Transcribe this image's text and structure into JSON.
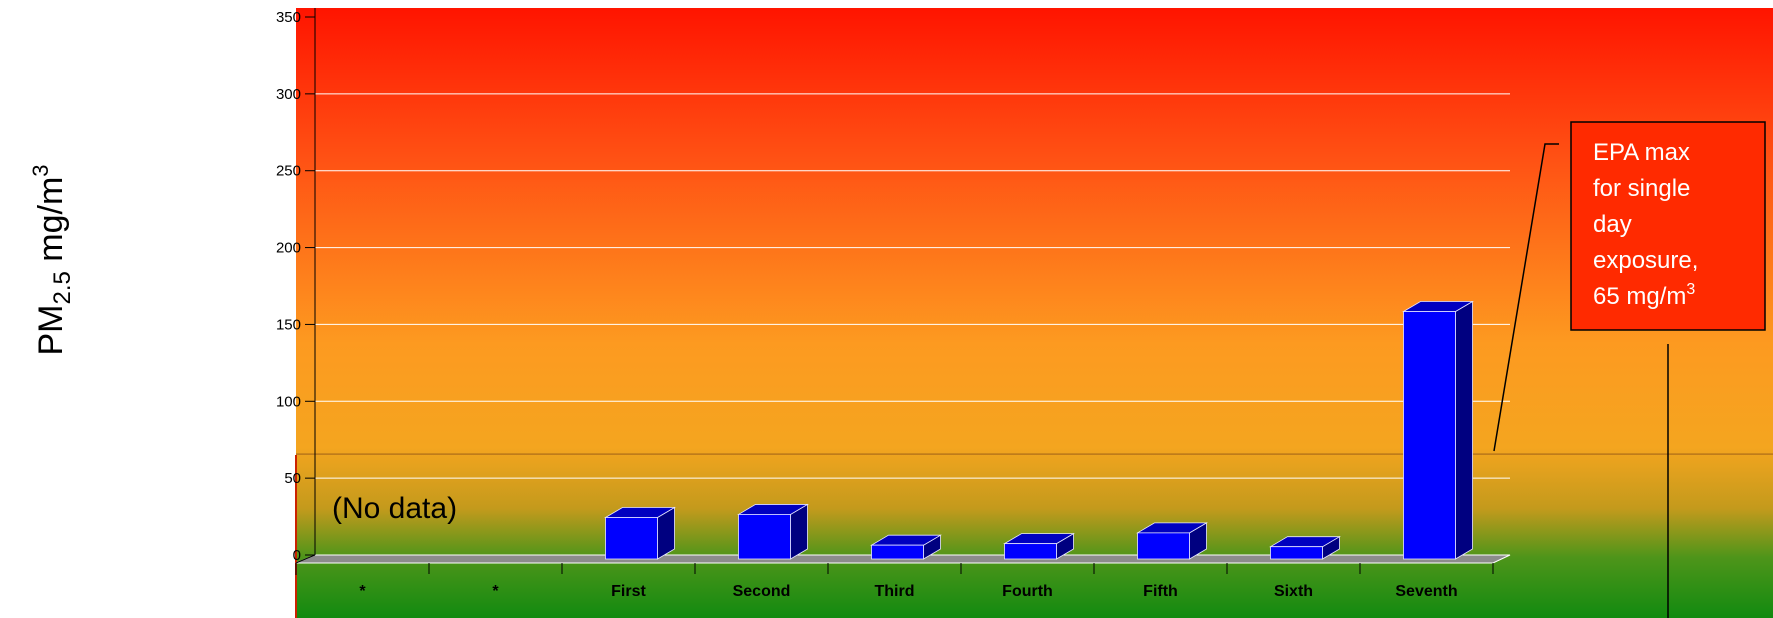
{
  "chart_data": {
    "type": "bar",
    "categories": [
      "*",
      "*",
      "First",
      "Second",
      "Third",
      "Fourth",
      "Fifth",
      "Sixth",
      "Seventh"
    ],
    "values": [
      null,
      null,
      27,
      29,
      9,
      10,
      17,
      8,
      161
    ],
    "xlabel": "",
    "ylabel": "PM2.5 mg/m3",
    "ylim": [
      0,
      350
    ],
    "yticks": [
      0,
      50,
      100,
      150,
      200,
      250,
      300,
      350
    ],
    "grid": true,
    "reference_line": 65,
    "bar_color": "#0000ff",
    "background_gradient": [
      "#ff1500",
      "#ff5a14",
      "#fc9a20",
      "#f2a31e",
      "#2d9a1a",
      "#158a10"
    ]
  },
  "ylabel_parts": {
    "main": "PM",
    "sub": "2.5",
    "unit": " mg/m",
    "sup": "3"
  },
  "annotations": {
    "no_data": "(No data)",
    "callout": {
      "lines": [
        "EPA max",
        "for single",
        "day",
        "exposure,"
      ],
      "last_line": "65 mg/m",
      "last_sup": "3",
      "fill": "#ff2a00"
    }
  }
}
